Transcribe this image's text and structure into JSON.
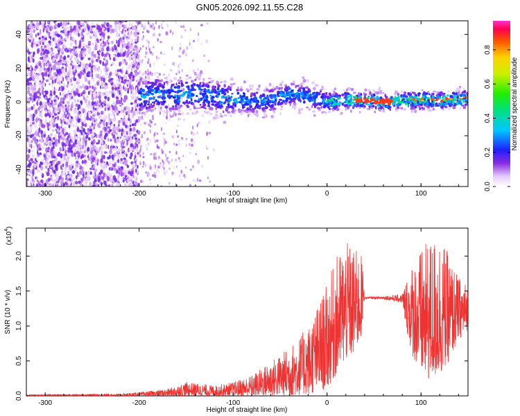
{
  "title": "GN05.2026.092.11.55.C28",
  "chart_data": [
    {
      "type": "heatmap",
      "xlabel": "Height of straight line (km)",
      "ylabel": "Frequency (Hz)",
      "xlim": [
        -320,
        150
      ],
      "ylim": [
        -50,
        48
      ],
      "x_ticks": [
        -300,
        -200,
        -100,
        0,
        100
      ],
      "y_ticks": [
        -40,
        -20,
        0,
        20,
        40
      ],
      "colorbar": {
        "label": "Normalized spectral amplitude",
        "range": [
          0,
          0.97
        ],
        "ticks": [
          0.0,
          0.2,
          0.4,
          0.6,
          0.8
        ]
      },
      "ridge": {
        "x": [
          -200,
          -180,
          -160,
          -140,
          -120,
          -100,
          -80,
          -60,
          -40,
          -20,
          0,
          20,
          40,
          60,
          80,
          100,
          120,
          150
        ],
        "frequency": [
          3,
          5,
          4,
          5,
          3,
          2,
          0,
          1,
          5,
          3,
          0,
          1,
          1,
          0,
          1,
          1,
          1,
          2
        ]
      }
    },
    {
      "type": "line",
      "xlabel": "Height of straight line (km)",
      "ylabel": "SNR (10 * v/v)",
      "y_multiplier": "(x10",
      "y_multiplier_exp": "4",
      "y_multiplier_close": ")",
      "xlim": [
        -320,
        150
      ],
      "ylim": [
        0,
        2.4
      ],
      "x_ticks": [
        -300,
        -200,
        -100,
        0,
        100
      ],
      "y_ticks": [
        0.0,
        0.5,
        1.0,
        1.5,
        2.0
      ],
      "series_color": "#ee3333",
      "envelope": {
        "x": [
          -320,
          -220,
          -200,
          -170,
          -150,
          -120,
          -100,
          -80,
          -60,
          -40,
          -20,
          0,
          10,
          20,
          30,
          38,
          40,
          60,
          80,
          90,
          100,
          110,
          120,
          130,
          140,
          150
        ],
        "upper": [
          0.02,
          0.03,
          0.05,
          0.1,
          0.2,
          0.15,
          0.2,
          0.3,
          0.5,
          0.7,
          1.0,
          1.6,
          2.0,
          2.2,
          2.1,
          2.0,
          1.42,
          1.45,
          1.5,
          1.9,
          2.1,
          2.25,
          2.35,
          2.0,
          1.7,
          1.6
        ],
        "lower": [
          0.0,
          0.0,
          0.0,
          0.0,
          0.0,
          0.0,
          0.0,
          0.0,
          0.0,
          0.0,
          0.02,
          0.1,
          0.3,
          0.5,
          0.6,
          0.9,
          1.38,
          1.35,
          1.25,
          0.6,
          0.3,
          0.2,
          0.3,
          0.5,
          0.8,
          0.95
        ]
      }
    }
  ]
}
